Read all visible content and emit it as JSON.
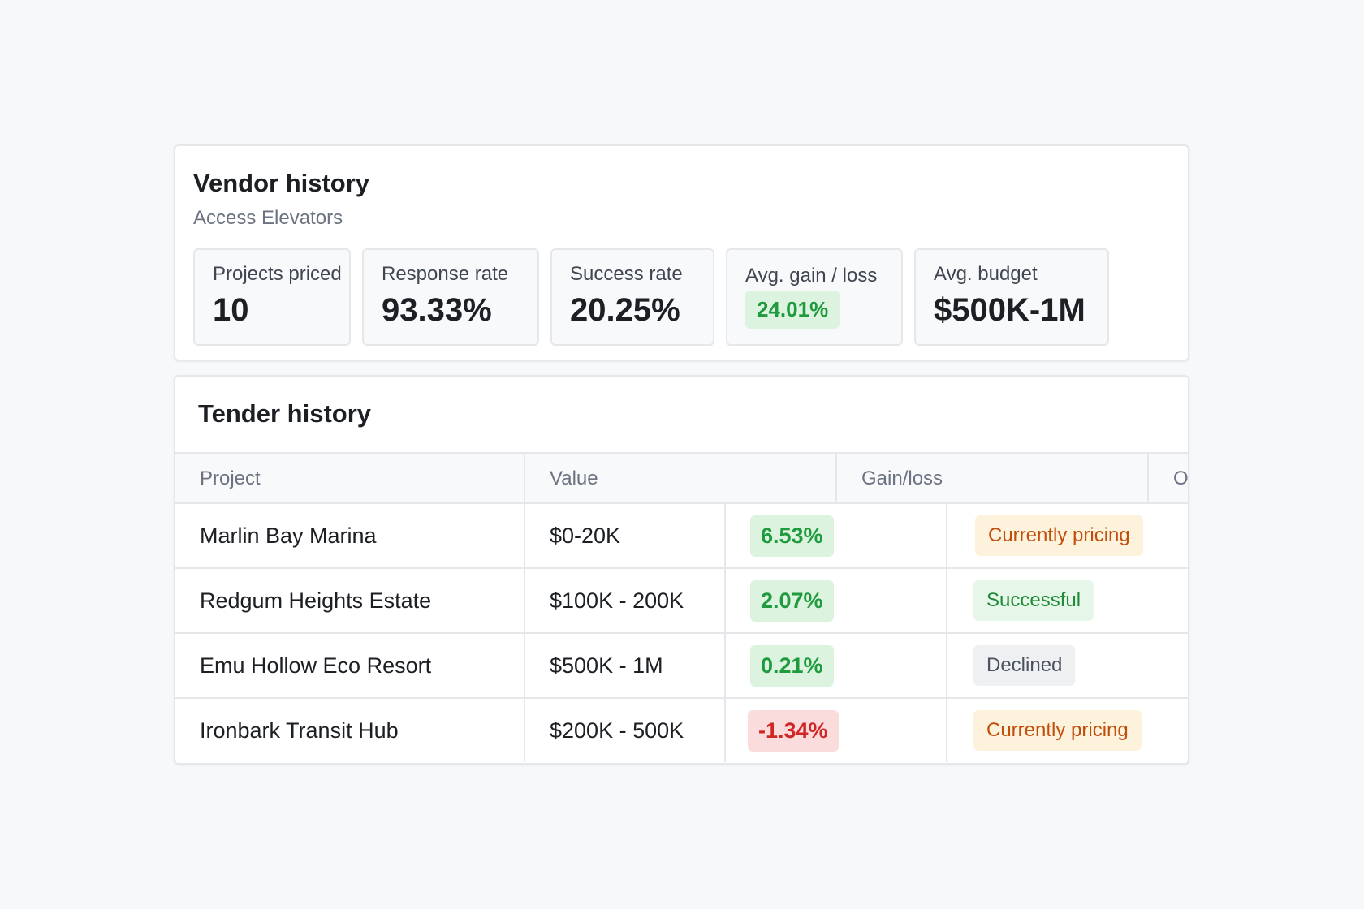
{
  "vendor": {
    "title": "Vendor history",
    "subtitle": "Access Elevators",
    "stats": [
      {
        "label": "Projects priced",
        "value": "10"
      },
      {
        "label": "Response rate",
        "value": "93.33%"
      },
      {
        "label": "Success rate",
        "value": "20.25%"
      },
      {
        "label": "Avg. gain / loss",
        "value": "24.01%"
      },
      {
        "label": "Avg. budget",
        "value": "$500K-1M"
      }
    ]
  },
  "tender": {
    "title": "Tender history",
    "columns": [
      "Project",
      "Value",
      "Gain/loss",
      "Ou"
    ],
    "rows": [
      {
        "project": "Marlin Bay Marina",
        "value": "$0-20K",
        "gain": "6.53%",
        "status": "Currently pricing"
      },
      {
        "project": "Redgum Heights Estate",
        "value": "$100K - 200K",
        "gain": "2.07%",
        "status": "Successful"
      },
      {
        "project": "Emu Hollow Eco Resort",
        "value": "$500K - 1M",
        "gain": "0.21%",
        "status": "Declined"
      },
      {
        "project": "Ironbark Transit Hub",
        "value": "$200K - 500K",
        "gain": "-1.34%",
        "status": "Currently pricing"
      }
    ]
  },
  "colors": {
    "positive": "#1f9a3d",
    "negative": "#d12626",
    "pricing": "#c24e0c",
    "background": "#f7f8fa"
  }
}
